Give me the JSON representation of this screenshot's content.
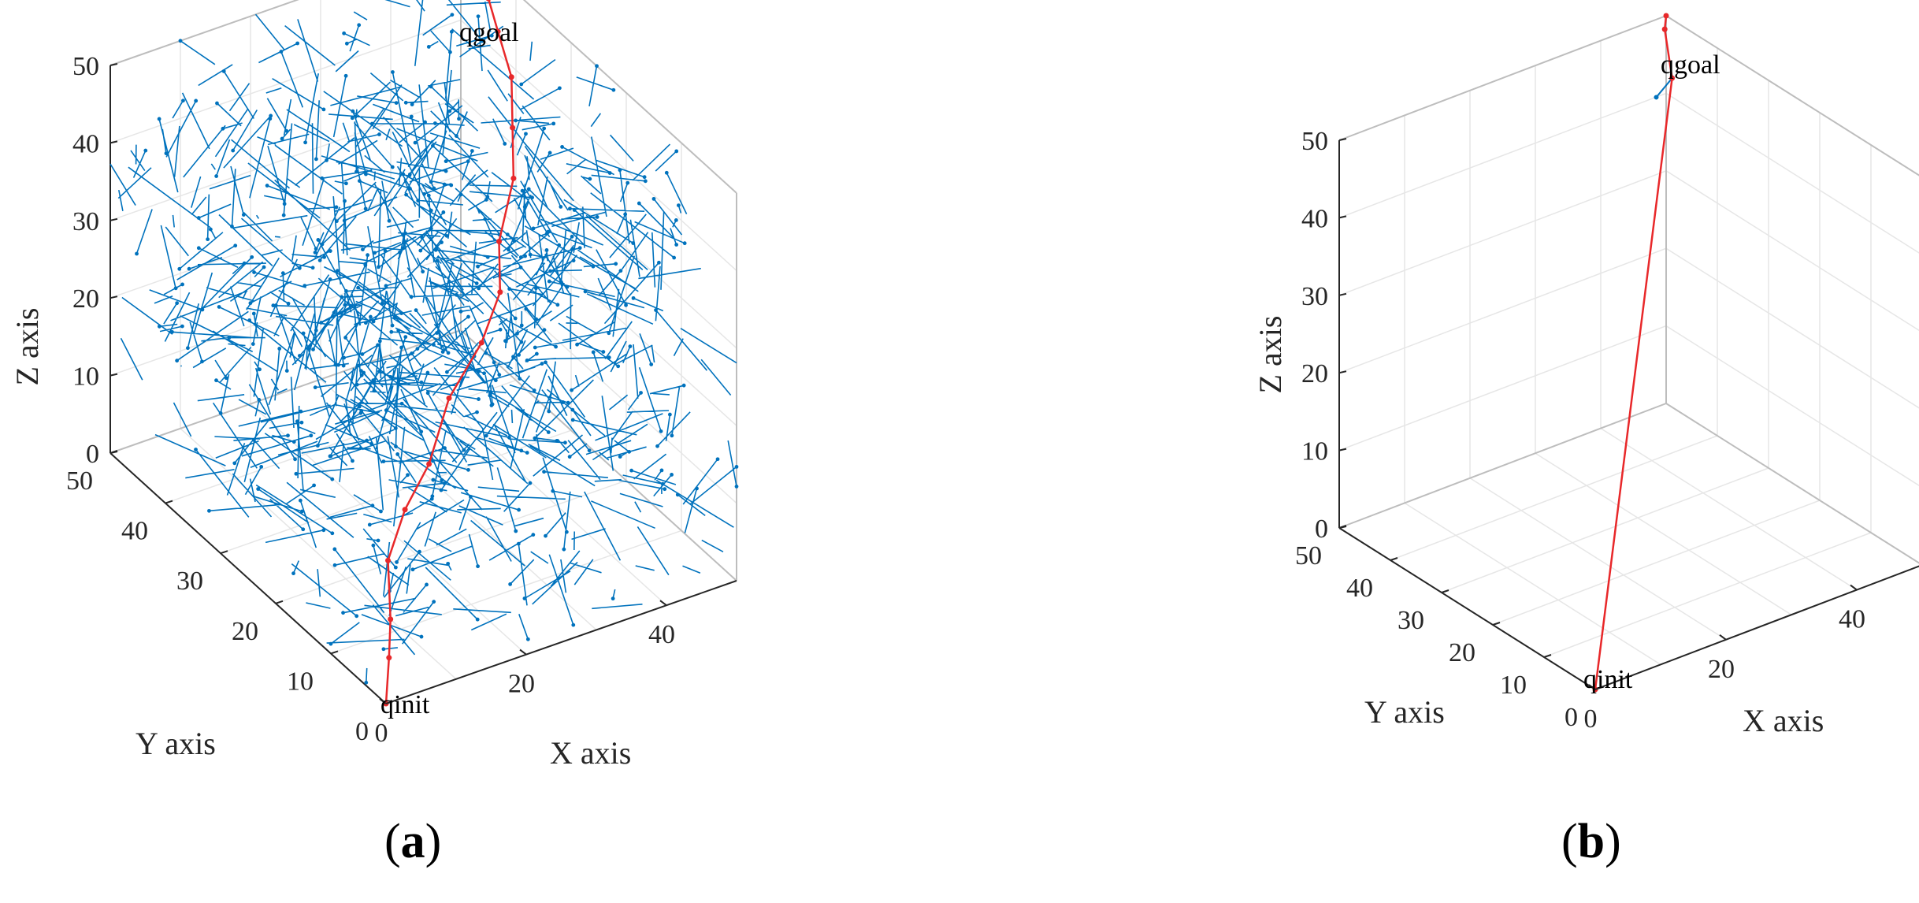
{
  "colors": {
    "tree": "#0072BD",
    "path": "#E8282A"
  },
  "chart_data": [
    {
      "type": "scatter",
      "panel_label": "a",
      "xlabel": "X axis",
      "ylabel": "Y axis",
      "zlabel": "Z axis",
      "xlim": [
        0,
        50
      ],
      "ylim": [
        0,
        50
      ],
      "zlim": [
        0,
        50
      ],
      "xticks": [
        "0",
        "20",
        "40"
      ],
      "yticks": [
        "0",
        "10",
        "20",
        "30",
        "40",
        "50"
      ],
      "zticks": [
        "0",
        "10",
        "20",
        "30",
        "40",
        "50"
      ],
      "grid": true,
      "annotations": [
        {
          "text": "qinit",
          "x": 0,
          "y": 0,
          "z": 0
        },
        {
          "text": "qgoal",
          "x": 50,
          "y": 50,
          "z": 50
        }
      ],
      "tree": {
        "name": "",
        "node_count_estimate": 900
      },
      "series": [
        {
          "name": "",
          "x": [
            0,
            2,
            3,
            5,
            9,
            14,
            20,
            27,
            32,
            35,
            41,
            44,
            47,
            49,
            50,
            49,
            48,
            50
          ],
          "y": [
            0,
            2,
            3,
            6,
            8,
            10,
            14,
            17,
            20,
            24,
            29,
            33,
            37,
            42,
            45,
            46,
            48,
            50
          ],
          "z": [
            0,
            4,
            8,
            13,
            17,
            20,
            24,
            27,
            30,
            33,
            36,
            39,
            42,
            44,
            46,
            47,
            48,
            50
          ]
        }
      ]
    },
    {
      "type": "scatter",
      "panel_label": "b",
      "xlabel": "X axis",
      "ylabel": "Y axis",
      "zlabel": "Z axis",
      "xlim": [
        0,
        50
      ],
      "ylim": [
        0,
        50
      ],
      "zlim": [
        0,
        50
      ],
      "xticks": [
        "0",
        "20",
        "40"
      ],
      "yticks": [
        "0",
        "10",
        "20",
        "30",
        "40",
        "50"
      ],
      "zticks": [
        "0",
        "10",
        "20",
        "30",
        "40",
        "50"
      ],
      "grid": true,
      "annotations": [
        {
          "text": "qinit",
          "x": 0,
          "y": 0,
          "z": 0
        },
        {
          "text": "qgoal",
          "x": 50,
          "y": 50,
          "z": 50
        }
      ],
      "tree": {
        "name": "",
        "node_count_estimate": 5
      },
      "series": [
        {
          "name": "",
          "x": [
            0,
            47,
            49,
            50
          ],
          "y": [
            0,
            45,
            49,
            50
          ],
          "z": [
            0,
            45,
            49,
            50
          ]
        }
      ]
    }
  ]
}
